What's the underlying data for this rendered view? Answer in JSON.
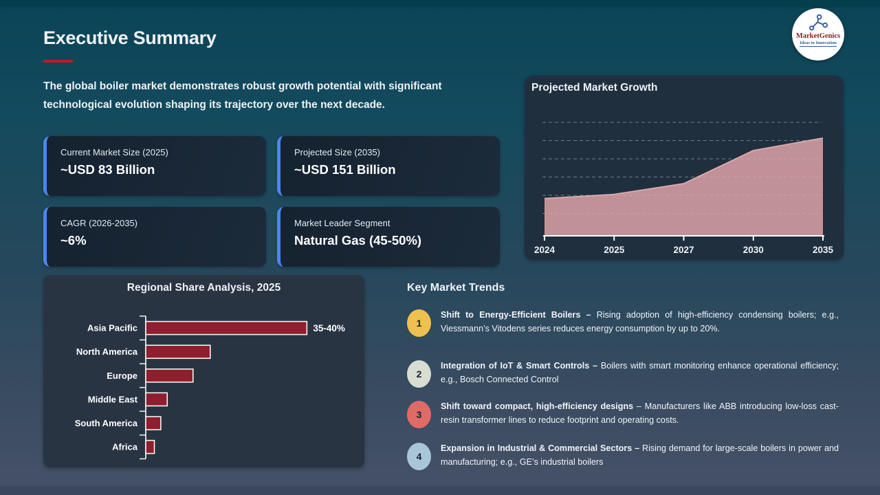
{
  "slide": {
    "title": "Executive Summary",
    "intro": "The global boiler market demonstrates robust growth potential with significant technological evolution shaping its trajectory over the next decade."
  },
  "logo": {
    "name": "MarketGenics",
    "tagline": "Ideas to Innovation"
  },
  "colors": {
    "accent_red": "#c01a22",
    "card_accent_blue": "#4b86f0",
    "area_fill": "#c6959b",
    "area_edge": "#d7a9ad",
    "bar_fill": "#8e1f2e",
    "badge_1": "#efc04f",
    "badge_2": "#d8ddd2",
    "badge_3": "#e06b66",
    "badge_4": "#a9c6d9"
  },
  "stat_cards": [
    {
      "label": "Current Market Size (2025)",
      "value": "~USD 83 Billion"
    },
    {
      "label": "Projected Size (2035)",
      "value": "~USD 151 Billion"
    },
    {
      "label": "CAGR (2026-2035)",
      "value": "~6%"
    },
    {
      "label": "Market Leader Segment",
      "value": "Natural Gas (45-50%)"
    }
  ],
  "chart_data": [
    {
      "type": "area",
      "title": "Projected Market Growth",
      "x": [
        "2024",
        "2025",
        "2027",
        "2030",
        "2035"
      ],
      "values": [
        78,
        83,
        96,
        136,
        151
      ],
      "ylabel": "",
      "xlabel": "",
      "ylim": [
        33,
        170
      ],
      "gridlines": [
        60,
        82,
        104,
        126,
        148,
        170
      ],
      "grid_style": "dashed horizontal",
      "legend": false,
      "note": "no y-axis tick labels shown; values in ~USD Billion estimated from 2025=83B and 2035=151B stat cards"
    },
    {
      "type": "bar",
      "orientation": "horizontal",
      "title": "Regional Share Analysis, 2025",
      "categories": [
        "Asia Pacific",
        "North America",
        "Europe",
        "Middle East",
        "South America",
        "Africa"
      ],
      "values": [
        37.5,
        15,
        11,
        5,
        3.5,
        2
      ],
      "xlim": [
        0,
        40
      ],
      "annotation": {
        "category": "Asia Pacific",
        "text": "35-40%"
      },
      "legend": false,
      "note": "only Asia Pacific bar is labeled (35-40%); other values estimated from bar lengths"
    }
  ],
  "trends": {
    "heading": "Key Market Trends",
    "items": [
      {
        "num": "1",
        "color": "#efc04f",
        "title": "Shift to Energy-Efficient Boilers –",
        "body": "Rising adoption of high-efficiency condensing boilers; e.g., Viessmann’s Vitodens series reduces energy consumption by up to 20%."
      },
      {
        "num": "2",
        "color": "#d8ddd2",
        "title": "Integration of IoT & Smart Controls –",
        "body": "Boilers with smart monitoring enhance operational efficiency; e.g., Bosch Connected Control"
      },
      {
        "num": "3",
        "color": "#e06b66",
        "title": "Shift toward compact, high-efficiency designs",
        "body": "– Manufacturers like ABB introducing low-loss cast-resin transformer lines to reduce footprint and operating costs."
      },
      {
        "num": "4",
        "color": "#a9c6d9",
        "title": "Expansion in Industrial & Commercial Sectors –",
        "body": "Rising demand for large-scale boilers in power and manufacturing; e.g., GE’s industrial boilers"
      }
    ]
  }
}
